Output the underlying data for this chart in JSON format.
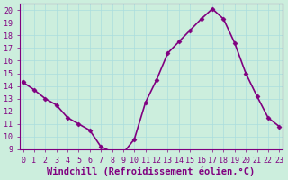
{
  "x": [
    0,
    1,
    2,
    3,
    4,
    5,
    6,
    7,
    8,
    9,
    10,
    11,
    12,
    13,
    14,
    15,
    16,
    17,
    18,
    19,
    20,
    21,
    22,
    23
  ],
  "y": [
    14.3,
    13.7,
    13.0,
    12.5,
    11.5,
    11.0,
    10.5,
    9.2,
    8.8,
    8.7,
    9.8,
    12.7,
    14.5,
    16.6,
    17.5,
    18.4,
    19.3,
    20.1,
    19.3,
    17.4,
    15.0,
    13.2,
    11.5,
    10.8
  ],
  "line_color": "#800080",
  "marker": "D",
  "marker_size": 2.5,
  "line_width": 1.2,
  "xlabel": "Windchill (Refroidissement éolien,°C)",
  "xlabel_fontsize": 7.5,
  "xlim": [
    -0.3,
    23.3
  ],
  "ylim": [
    9,
    20.5
  ],
  "yticks": [
    9,
    10,
    11,
    12,
    13,
    14,
    15,
    16,
    17,
    18,
    19,
    20
  ],
  "xticks": [
    0,
    1,
    2,
    3,
    4,
    5,
    6,
    7,
    8,
    9,
    10,
    11,
    12,
    13,
    14,
    15,
    16,
    17,
    18,
    19,
    20,
    21,
    22,
    23
  ],
  "grid_color": "#aadddd",
  "bg_color": "#cceedd",
  "tick_fontsize": 6,
  "xlabel_color": "#800080",
  "axis_color": "#800080",
  "tick_color": "#800080"
}
